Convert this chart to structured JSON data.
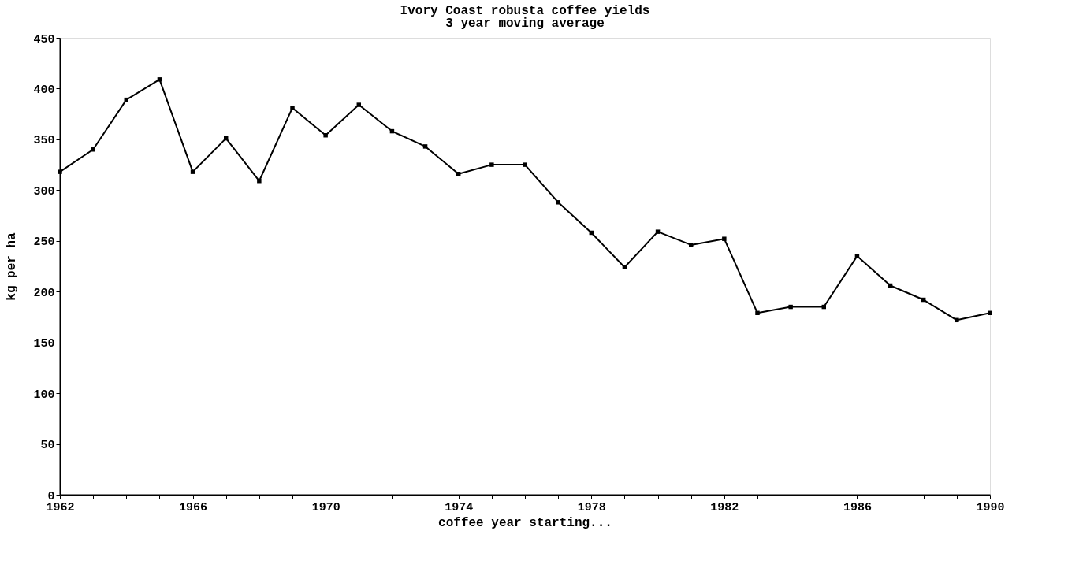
{
  "chart_data": {
    "type": "line",
    "title": "Ivory Coast robusta coffee yields",
    "subtitle": "3 year moving average",
    "xlabel": "coffee year starting...",
    "ylabel": "kg per ha",
    "x": [
      1962,
      1963,
      1964,
      1965,
      1966,
      1967,
      1968,
      1969,
      1970,
      1971,
      1972,
      1973,
      1974,
      1975,
      1976,
      1977,
      1978,
      1979,
      1980,
      1981,
      1982,
      1983,
      1984,
      1985,
      1986,
      1987,
      1988,
      1989,
      1990
    ],
    "series": [
      {
        "color": "#000000",
        "values": [
          318,
          340,
          389,
          409,
          318,
          351,
          309,
          381,
          354,
          384,
          358,
          343,
          316,
          325,
          325,
          288,
          258,
          224,
          259,
          246,
          252,
          179,
          185,
          185,
          235,
          206,
          192,
          172,
          179
        ]
      }
    ],
    "xlim": [
      1962,
      1990
    ],
    "xticks": [
      1962,
      {
        "value": 1963,
        "label": null
      },
      {
        "value": 1964,
        "label": null
      },
      {
        "value": 1965,
        "label": null
      },
      1966,
      {
        "value": 1967,
        "label": null
      },
      {
        "value": 1968,
        "label": null
      },
      {
        "value": 1969,
        "label": null
      },
      1970,
      {
        "value": 1971,
        "label": null
      },
      {
        "value": 1972,
        "label": null
      },
      {
        "value": 1973,
        "label": null
      },
      1974,
      {
        "value": 1975,
        "label": null
      },
      {
        "value": 1976,
        "label": null
      },
      {
        "value": 1977,
        "label": null
      },
      1978,
      {
        "value": 1979,
        "label": null
      },
      {
        "value": 1980,
        "label": null
      },
      {
        "value": 1981,
        "label": null
      },
      1982,
      {
        "value": 1983,
        "label": null
      },
      {
        "value": 1984,
        "label": null
      },
      {
        "value": 1985,
        "label": null
      },
      1986,
      {
        "value": 1987,
        "label": null
      },
      {
        "value": 1988,
        "label": null
      },
      {
        "value": 1989,
        "label": null
      },
      1990
    ],
    "ylim": [
      0,
      450
    ],
    "yticks": [
      0,
      50,
      100,
      150,
      200,
      250,
      300,
      350,
      400,
      450
    ],
    "grid": false,
    "legend": false,
    "marker": "square",
    "line_style": "solid"
  }
}
